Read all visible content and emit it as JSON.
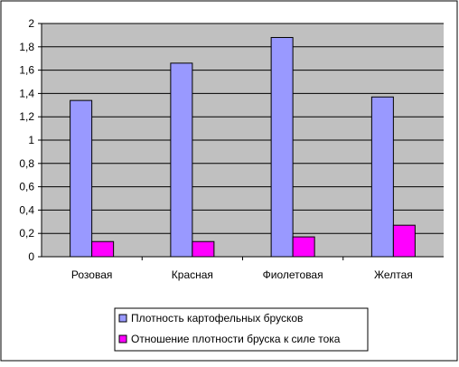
{
  "chart_data": {
    "type": "bar",
    "categories": [
      "Розовая",
      "Красная",
      "Фиолетовая",
      "Желтая"
    ],
    "series": [
      {
        "name": "Плотность картофельных брусков",
        "values": [
          1.34,
          1.66,
          1.88,
          1.37
        ],
        "color": "#9999ff"
      },
      {
        "name": "Отношение плотности бруска к силе тока",
        "values": [
          0.13,
          0.13,
          0.17,
          0.27
        ],
        "color": "#ff00ff"
      }
    ],
    "y_ticks": [
      "0",
      "0,2",
      "0,4",
      "0,6",
      "0,8",
      "1",
      "1,2",
      "1,4",
      "1,6",
      "1,8",
      "2"
    ],
    "ylim": [
      0,
      2
    ],
    "title": "",
    "xlabel": "",
    "ylabel": "",
    "grid": true,
    "legend_position": "bottom",
    "plot_background": "#c0c0c0"
  }
}
